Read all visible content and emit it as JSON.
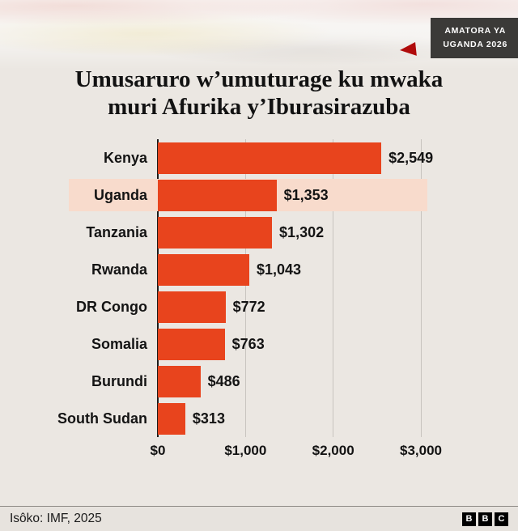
{
  "badge": {
    "line1": "AMATORA YA",
    "line2": "UGANDA 2026"
  },
  "title": {
    "line1": "Umusaruro w’umuturage ku mwaka",
    "line2": "muri Afurika y’Iburasirazuba"
  },
  "chart_data": {
    "type": "bar",
    "orientation": "horizontal",
    "categories": [
      "Kenya",
      "Uganda",
      "Tanzania",
      "Rwanda",
      "DR Congo",
      "Somalia",
      "Burundi",
      "South Sudan"
    ],
    "values": [
      2549,
      1353,
      1302,
      1043,
      772,
      763,
      486,
      313
    ],
    "value_labels": [
      "$2,549",
      "$1,353",
      "$1,302",
      "$1,043",
      "$772",
      "$763",
      "$486",
      "$313"
    ],
    "highlighted_category": "Uganda",
    "x_ticks": [
      "$0",
      "$1,000",
      "$2,000",
      "$3,000"
    ],
    "x_tick_values": [
      0,
      1000,
      2000,
      3000
    ],
    "xlim": [
      0,
      3000
    ],
    "grid": true,
    "bar_color": "#e8441d",
    "highlight_color": "#f8dbcc"
  },
  "footer": {
    "source": "Isôko: IMF, 2025",
    "logo_letters": [
      "B",
      "B",
      "C"
    ]
  }
}
